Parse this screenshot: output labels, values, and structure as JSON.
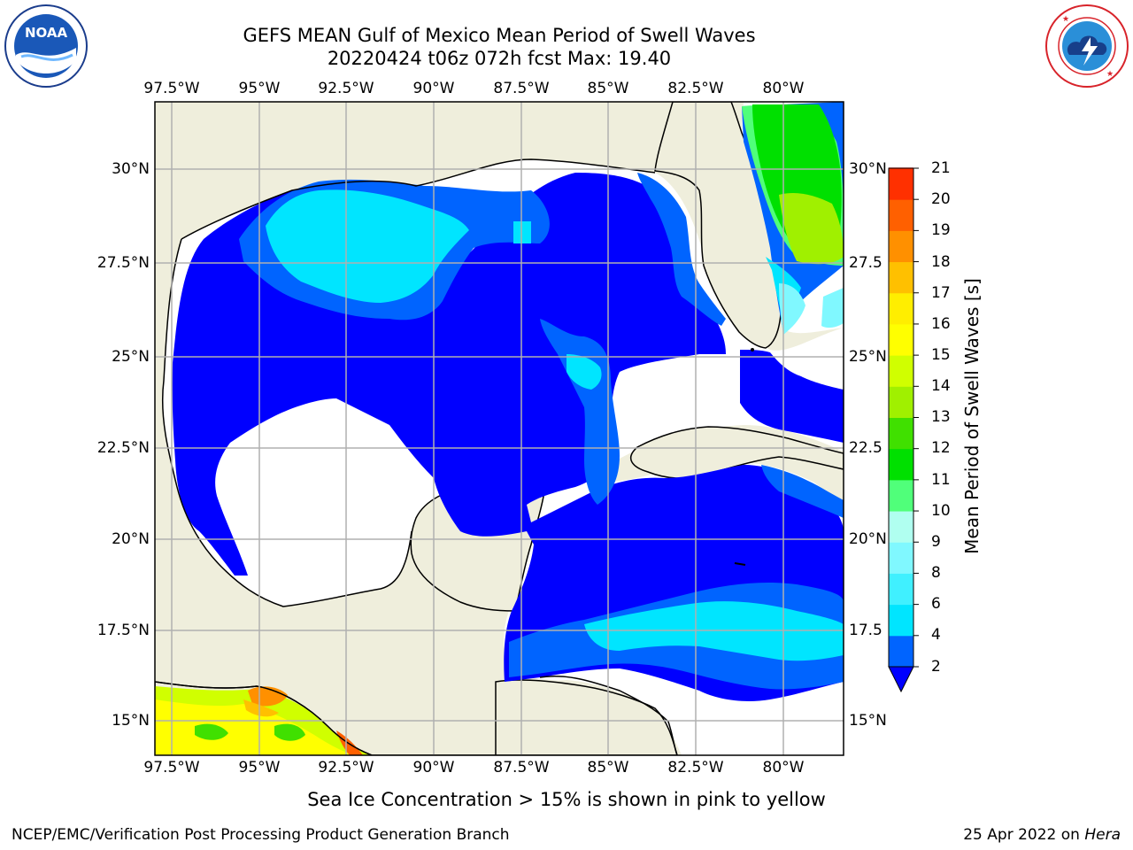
{
  "header": {
    "title_line1": "GEFS MEAN Gulf of Mexico Mean Period of Swell Waves",
    "title_line2": "20220424 t06z 072h fcst   Max: 19.40"
  },
  "logos": {
    "left": {
      "name": "noaa-logo",
      "text": "NOAA",
      "ring_text": "NATIONAL OCEANIC AND ATMOSPHERIC ADMINISTRATION · U.S. DEPARTMENT OF COMMERCE"
    },
    "right": {
      "name": "nws-logo",
      "ring_text": "NATIONAL WEATHER SERVICE"
    }
  },
  "map": {
    "longitude_labels": [
      "97.5°W",
      "95°W",
      "92.5°W",
      "90°W",
      "87.5°W",
      "85°W",
      "82.5°W",
      "80°W"
    ],
    "latitude_labels_left": [
      "30°N",
      "27.5°N",
      "25°N",
      "22.5°N",
      "20°N",
      "17.5°N",
      "15°N"
    ],
    "latitude_labels_right": [
      "30°N",
      "27.5",
      "25°N",
      "22.5",
      "20°N",
      "17.5",
      "15°N"
    ],
    "land_color": "#efeedc",
    "no_data_color": "#ffffff"
  },
  "colorbar": {
    "label": "Mean Period of Swell Waves [s]",
    "ticks": [
      "21",
      "20",
      "19",
      "18",
      "17",
      "16",
      "15",
      "14",
      "13",
      "12",
      "11",
      "10",
      "9",
      "8",
      "6",
      "4",
      "2"
    ],
    "levels_low_to_high": [
      2,
      4,
      6,
      8,
      9,
      10,
      11,
      12,
      13,
      14,
      15,
      16,
      17,
      18,
      19,
      20,
      21
    ],
    "colors_low_to_high": [
      "#0064ff",
      "#00e5ff",
      "#40f0ff",
      "#80f8ff",
      "#b0fff0",
      "#50ff7a",
      "#00e000",
      "#40e000",
      "#a0f000",
      "#d0ff00",
      "#ffff00",
      "#ffee00",
      "#ffc000",
      "#ff9000",
      "#ff6000",
      "#ff3000",
      "#ff0000"
    ],
    "under_color": "#0000ff"
  },
  "footnote": "Sea Ice Concentration > 15% is shown in pink to yellow",
  "credits": {
    "left": "NCEP/EMC/Verification Post Processing Product Generation Branch",
    "right_date": "25 Apr 2022 on",
    "right_host": "Hera"
  }
}
